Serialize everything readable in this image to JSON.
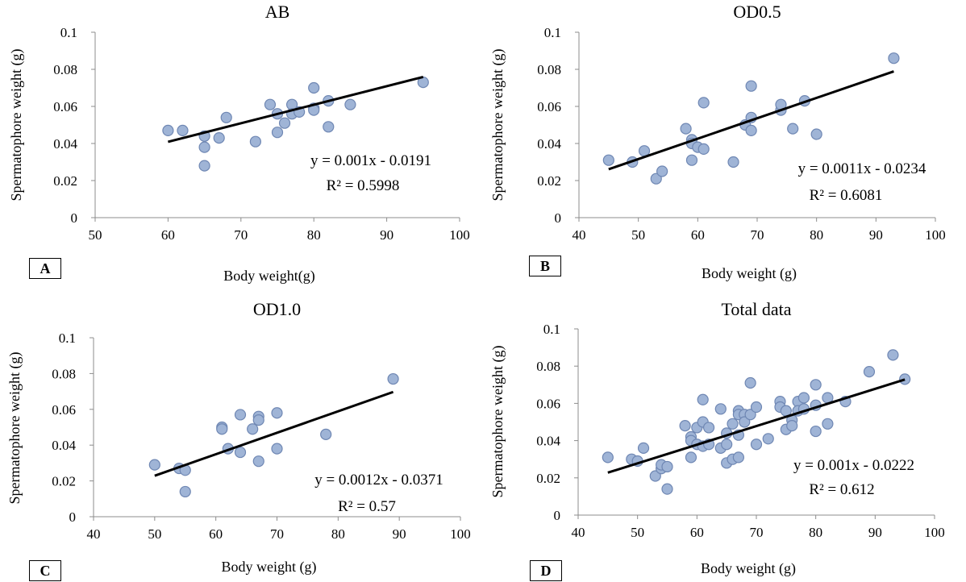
{
  "colors": {
    "point_fill": "#9fb4d6",
    "point_stroke": "#6f87b3",
    "trend": "#000000",
    "axis": "#8c8c8c"
  },
  "chart_data": [
    {
      "type": "scatter",
      "panel_label": "A",
      "title": "AB",
      "xlabel": "Body weight(g)",
      "ylabel": "Spermatophore weight (g)",
      "xlim": [
        50,
        100
      ],
      "ylim": [
        0,
        0.1
      ],
      "xticks": [
        "50",
        "60",
        "70",
        "80",
        "90",
        "100"
      ],
      "yticks": [
        "0",
        "0.02",
        "0.04",
        "0.06",
        "0.08",
        "0.1"
      ],
      "grid": false,
      "x": [
        60,
        62,
        65,
        65,
        65,
        67,
        68,
        72,
        74,
        75,
        75,
        76,
        77,
        77,
        78,
        80,
        80,
        80,
        82,
        82,
        85,
        95
      ],
      "y": [
        0.047,
        0.047,
        0.044,
        0.038,
        0.028,
        0.043,
        0.054,
        0.041,
        0.061,
        0.056,
        0.046,
        0.051,
        0.061,
        0.056,
        0.057,
        0.07,
        0.059,
        0.058,
        0.063,
        0.049,
        0.061,
        0.073
      ],
      "trendline": {
        "x": [
          60,
          95
        ],
        "y": [
          0.0409,
          0.0759
        ]
      },
      "equation": "y = 0.001x - 0.0191",
      "r2": "R² = 0.5998"
    },
    {
      "type": "scatter",
      "panel_label": "B",
      "title": "OD0.5",
      "xlabel": "Body weight (g)",
      "ylabel": "Spermatophore weight (g)",
      "xlim": [
        40,
        100
      ],
      "ylim": [
        0,
        0.1
      ],
      "xticks": [
        "40",
        "50",
        "60",
        "70",
        "80",
        "90",
        "100"
      ],
      "yticks": [
        "0",
        "0.02",
        "0.04",
        "0.06",
        "0.08",
        "0.1"
      ],
      "grid": false,
      "x": [
        45,
        49,
        51,
        53,
        54,
        58,
        59,
        59,
        59,
        60,
        61,
        61,
        66,
        68,
        69,
        69,
        69,
        74,
        74,
        76,
        78,
        80,
        93
      ],
      "y": [
        0.031,
        0.03,
        0.036,
        0.021,
        0.025,
        0.048,
        0.042,
        0.04,
        0.031,
        0.038,
        0.062,
        0.037,
        0.03,
        0.05,
        0.071,
        0.054,
        0.047,
        0.058,
        0.061,
        0.048,
        0.063,
        0.045,
        0.086
      ],
      "trendline": {
        "x": [
          45,
          93
        ],
        "y": [
          0.0261,
          0.0789
        ]
      },
      "equation": "y = 0.0011x - 0.0234",
      "r2": "R² = 0.6081"
    },
    {
      "type": "scatter",
      "panel_label": "C",
      "title": "OD1.0",
      "xlabel": "Body weight (g)",
      "ylabel": "Spermatophore weight (g)",
      "xlim": [
        40,
        100
      ],
      "ylim": [
        0,
        0.1
      ],
      "xticks": [
        "40",
        "50",
        "60",
        "70",
        "80",
        "90",
        "100"
      ],
      "yticks": [
        "0",
        "0.02",
        "0.04",
        "0.06",
        "0.08",
        "0.1"
      ],
      "grid": false,
      "x": [
        50,
        54,
        55,
        55,
        61,
        61,
        62,
        64,
        64,
        66,
        67,
        67,
        67,
        70,
        70,
        78,
        89
      ],
      "y": [
        0.029,
        0.027,
        0.026,
        0.014,
        0.05,
        0.049,
        0.038,
        0.057,
        0.036,
        0.049,
        0.056,
        0.054,
        0.031,
        0.058,
        0.038,
        0.046,
        0.077
      ],
      "trendline": {
        "x": [
          50,
          89
        ],
        "y": [
          0.0229,
          0.0697
        ]
      },
      "equation": "y = 0.0012x - 0.0371",
      "r2": "R² = 0.57"
    },
    {
      "type": "scatter",
      "panel_label": "D",
      "title": "Total data",
      "xlabel": "Body weight (g)",
      "ylabel": "Spermatophore weight (g)",
      "xlim": [
        40,
        100
      ],
      "ylim": [
        0,
        0.1
      ],
      "xticks": [
        "40",
        "50",
        "60",
        "70",
        "80",
        "90",
        "100"
      ],
      "yticks": [
        "0",
        "0.02",
        "0.04",
        "0.06",
        "0.08",
        "0.1"
      ],
      "grid": false,
      "x": [
        45,
        49,
        50,
        51,
        53,
        54,
        54,
        55,
        55,
        58,
        59,
        59,
        59,
        60,
        60,
        61,
        61,
        61,
        62,
        62,
        64,
        64,
        65,
        65,
        65,
        66,
        66,
        67,
        67,
        67,
        67,
        68,
        68,
        69,
        69,
        70,
        70,
        72,
        74,
        74,
        75,
        75,
        76,
        76,
        77,
        77,
        78,
        78,
        80,
        80,
        80,
        82,
        82,
        85,
        89,
        93,
        95
      ],
      "y": [
        0.031,
        0.03,
        0.029,
        0.036,
        0.021,
        0.025,
        0.027,
        0.026,
        0.014,
        0.048,
        0.042,
        0.04,
        0.031,
        0.038,
        0.047,
        0.062,
        0.05,
        0.037,
        0.047,
        0.038,
        0.057,
        0.036,
        0.044,
        0.038,
        0.028,
        0.049,
        0.03,
        0.056,
        0.054,
        0.043,
        0.031,
        0.054,
        0.05,
        0.071,
        0.054,
        0.058,
        0.038,
        0.041,
        0.061,
        0.058,
        0.056,
        0.046,
        0.051,
        0.048,
        0.061,
        0.056,
        0.057,
        0.063,
        0.07,
        0.059,
        0.045,
        0.063,
        0.049,
        0.061,
        0.077,
        0.086,
        0.073
      ],
      "trendline": {
        "x": [
          45,
          95
        ],
        "y": [
          0.0228,
          0.0728
        ]
      },
      "equation": "y = 0.001x - 0.0222",
      "r2": "R² = 0.612"
    }
  ]
}
